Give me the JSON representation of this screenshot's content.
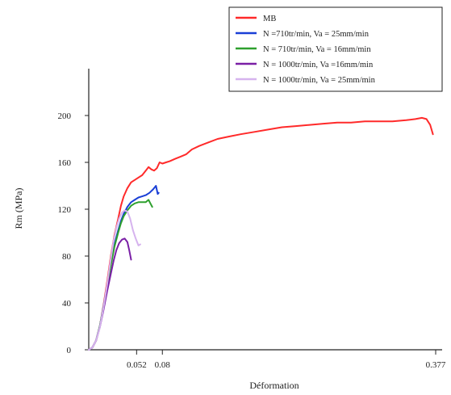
{
  "chart_data": {
    "type": "line",
    "title": "",
    "xlabel": "Déformation",
    "ylabel": "Rm (MPa)",
    "xlim": [
      0,
      0.384
    ],
    "ylim": [
      0,
      240
    ],
    "x_ticks": [
      0.052,
      0.08,
      0.377
    ],
    "x_tick_labels": [
      "0.052",
      "0.08",
      "0.377"
    ],
    "y_ticks": [
      0,
      40,
      80,
      120,
      160,
      200
    ],
    "y_tick_labels": [
      "0",
      "40",
      "80",
      "120",
      "160",
      "200"
    ],
    "grid": false,
    "legend_position": "top-right",
    "series": [
      {
        "name": "MB",
        "color": "#ff2a2a",
        "points": [
          [
            0.0,
            0
          ],
          [
            0.004,
            2
          ],
          [
            0.008,
            8
          ],
          [
            0.012,
            20
          ],
          [
            0.016,
            38
          ],
          [
            0.02,
            58
          ],
          [
            0.024,
            80
          ],
          [
            0.028,
            98
          ],
          [
            0.032,
            112
          ],
          [
            0.035,
            123
          ],
          [
            0.038,
            131
          ],
          [
            0.042,
            138
          ],
          [
            0.046,
            143
          ],
          [
            0.05,
            145
          ],
          [
            0.054,
            147
          ],
          [
            0.058,
            149
          ],
          [
            0.062,
            153
          ],
          [
            0.065,
            156
          ],
          [
            0.068,
            154
          ],
          [
            0.071,
            153
          ],
          [
            0.074,
            155
          ],
          [
            0.077,
            160
          ],
          [
            0.08,
            159
          ],
          [
            0.084,
            160
          ],
          [
            0.088,
            161
          ],
          [
            0.094,
            163
          ],
          [
            0.1,
            165
          ],
          [
            0.106,
            167
          ],
          [
            0.112,
            171
          ],
          [
            0.12,
            174
          ],
          [
            0.13,
            177
          ],
          [
            0.14,
            180
          ],
          [
            0.152,
            182
          ],
          [
            0.165,
            184
          ],
          [
            0.18,
            186
          ],
          [
            0.195,
            188
          ],
          [
            0.21,
            190
          ],
          [
            0.225,
            191
          ],
          [
            0.24,
            192
          ],
          [
            0.255,
            193
          ],
          [
            0.27,
            194
          ],
          [
            0.285,
            194
          ],
          [
            0.3,
            195
          ],
          [
            0.315,
            195
          ],
          [
            0.33,
            195
          ],
          [
            0.345,
            196
          ],
          [
            0.355,
            197
          ],
          [
            0.362,
            198
          ],
          [
            0.367,
            197
          ],
          [
            0.371,
            192
          ],
          [
            0.374,
            184
          ]
        ]
      },
      {
        "name": "N =710tr/min, Va = 25mm/min",
        "color": "#1a3fd6",
        "points": [
          [
            0.0,
            0
          ],
          [
            0.004,
            2
          ],
          [
            0.008,
            8
          ],
          [
            0.012,
            20
          ],
          [
            0.016,
            37
          ],
          [
            0.02,
            55
          ],
          [
            0.024,
            74
          ],
          [
            0.028,
            90
          ],
          [
            0.032,
            102
          ],
          [
            0.035,
            110
          ],
          [
            0.038,
            116
          ],
          [
            0.042,
            122
          ],
          [
            0.046,
            126
          ],
          [
            0.05,
            128
          ],
          [
            0.054,
            130
          ],
          [
            0.058,
            131
          ],
          [
            0.062,
            132
          ],
          [
            0.066,
            134
          ],
          [
            0.07,
            137
          ],
          [
            0.073,
            140
          ],
          [
            0.075,
            133
          ],
          [
            0.076,
            134
          ]
        ]
      },
      {
        "name": "N = 710tr/min, Va = 16mm/min",
        "color": "#2ea02e",
        "points": [
          [
            0.0,
            0
          ],
          [
            0.004,
            2
          ],
          [
            0.008,
            8
          ],
          [
            0.012,
            20
          ],
          [
            0.016,
            36
          ],
          [
            0.02,
            54
          ],
          [
            0.024,
            72
          ],
          [
            0.028,
            88
          ],
          [
            0.032,
            100
          ],
          [
            0.035,
            108
          ],
          [
            0.038,
            114
          ],
          [
            0.042,
            119
          ],
          [
            0.046,
            123
          ],
          [
            0.05,
            125
          ],
          [
            0.054,
            126
          ],
          [
            0.058,
            126
          ],
          [
            0.062,
            126
          ],
          [
            0.065,
            128
          ],
          [
            0.067,
            125
          ],
          [
            0.069,
            122
          ]
        ]
      },
      {
        "name": "N = 1000tr/min, Va =16mm/min",
        "color": "#7a1fa6",
        "points": [
          [
            0.0,
            0
          ],
          [
            0.004,
            2
          ],
          [
            0.008,
            8
          ],
          [
            0.012,
            19
          ],
          [
            0.016,
            34
          ],
          [
            0.02,
            50
          ],
          [
            0.024,
            65
          ],
          [
            0.027,
            76
          ],
          [
            0.03,
            85
          ],
          [
            0.033,
            91
          ],
          [
            0.036,
            94
          ],
          [
            0.039,
            95
          ],
          [
            0.042,
            92
          ],
          [
            0.044,
            85
          ],
          [
            0.046,
            77
          ]
        ]
      },
      {
        "name": "N = 1000tr/min, Va = 25mm/min",
        "color": "#d6b3ee",
        "points": [
          [
            0.0,
            0
          ],
          [
            0.004,
            2
          ],
          [
            0.008,
            8
          ],
          [
            0.012,
            19
          ],
          [
            0.016,
            36
          ],
          [
            0.02,
            56
          ],
          [
            0.024,
            78
          ],
          [
            0.027,
            93
          ],
          [
            0.03,
            104
          ],
          [
            0.033,
            112
          ],
          [
            0.036,
            117
          ],
          [
            0.039,
            119
          ],
          [
            0.042,
            118
          ],
          [
            0.045,
            112
          ],
          [
            0.048,
            102
          ],
          [
            0.051,
            95
          ],
          [
            0.054,
            89
          ],
          [
            0.056,
            90
          ]
        ]
      }
    ]
  }
}
